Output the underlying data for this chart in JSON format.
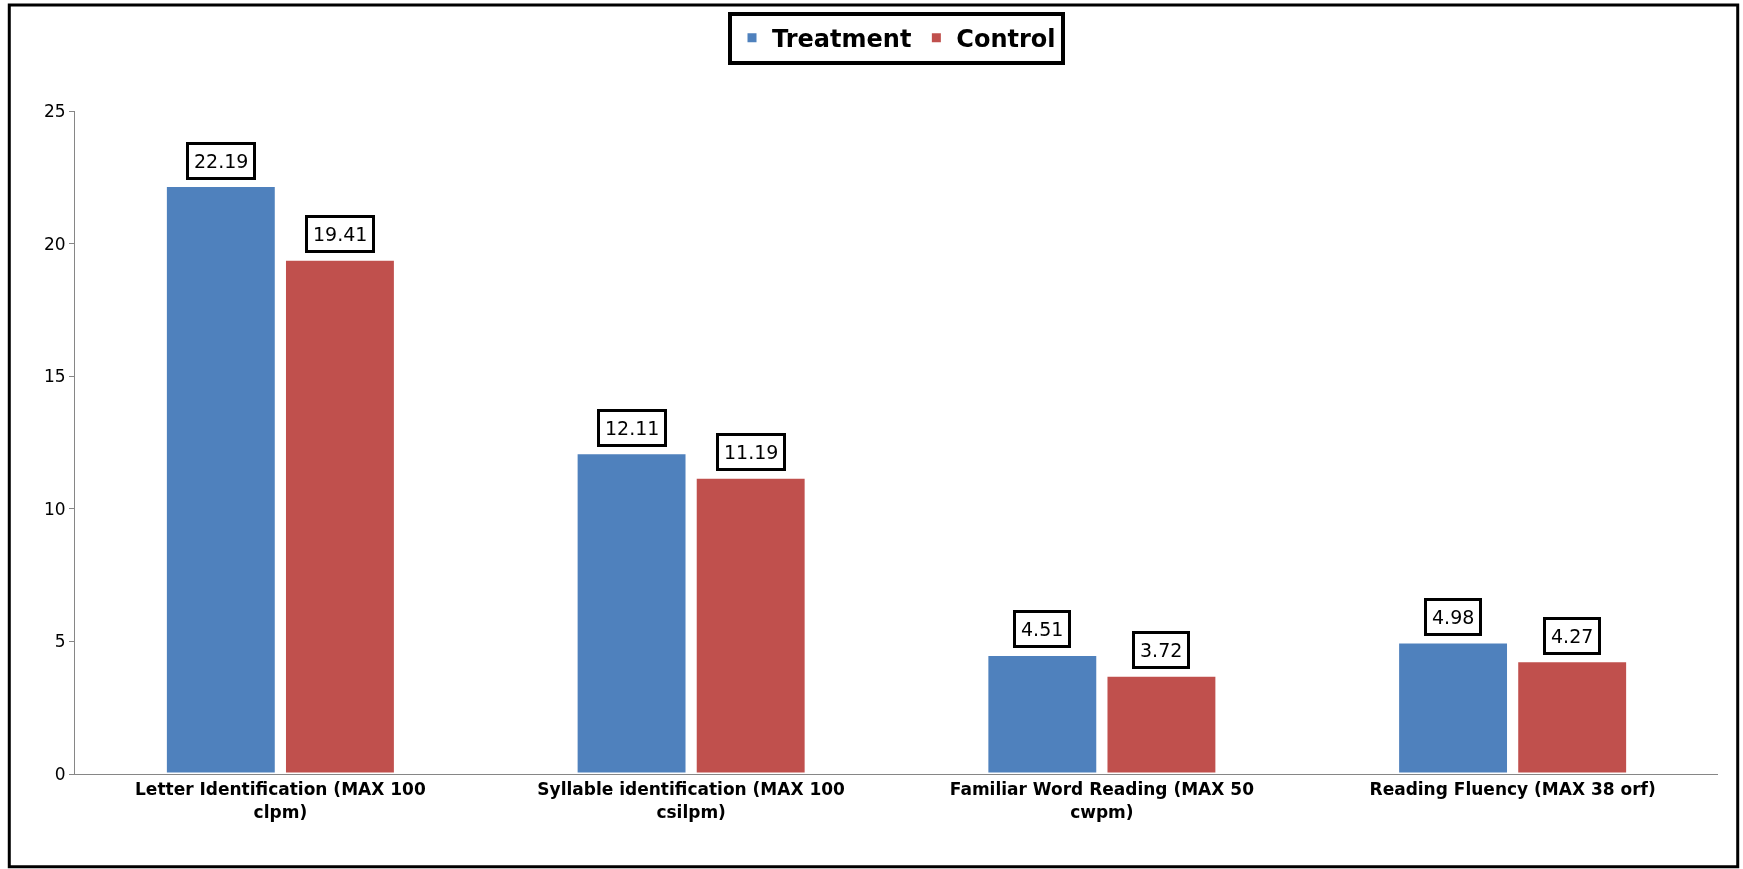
{
  "chart_data": {
    "type": "bar",
    "categories": [
      "Letter Identification (MAX 100 clpm)",
      "Syllable identification (MAX 100 csilpm)",
      "Familiar Word Reading (MAX 50 cwpm)",
      "Reading Fluency (MAX 38 orf)"
    ],
    "series": [
      {
        "name": "Treatment",
        "color": "#4f81bd",
        "values": [
          22.19,
          12.11,
          4.51,
          4.98
        ]
      },
      {
        "name": "Control",
        "color": "#c0504d",
        "values": [
          19.41,
          11.19,
          3.72,
          4.27
        ]
      }
    ],
    "ylim": [
      0,
      25
    ],
    "yticks": [
      0,
      5,
      10,
      15,
      20,
      25
    ],
    "legend": "top",
    "data_labels": true
  }
}
